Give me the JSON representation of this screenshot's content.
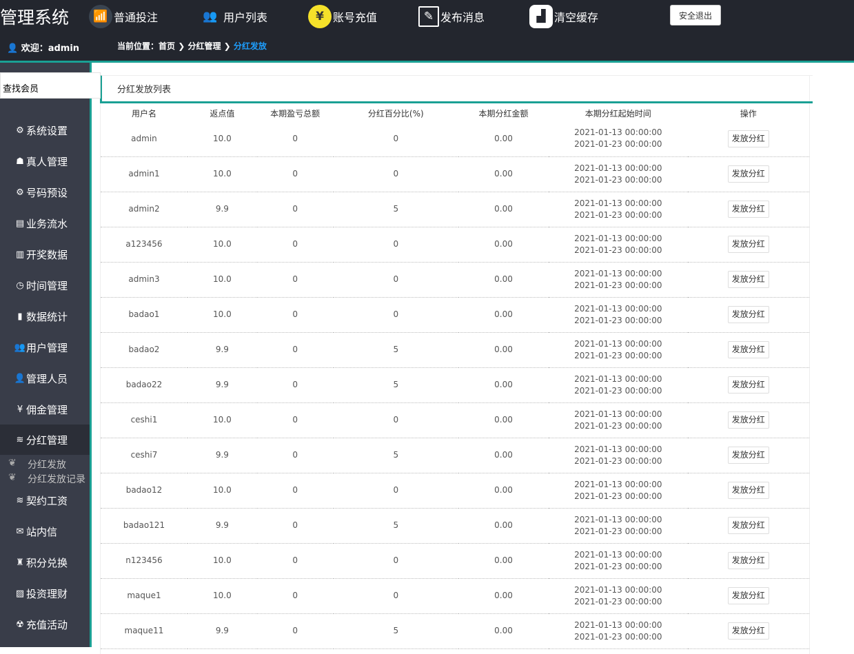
{
  "header": {
    "logo": "管理系统",
    "nav": [
      {
        "label": "普通投注",
        "icon": "chart-icon"
      },
      {
        "label": "用户列表",
        "icon": "users-icon"
      },
      {
        "label": "账号充值",
        "icon": "money-bag-icon"
      },
      {
        "label": "发布消息",
        "icon": "edit-icon"
      },
      {
        "label": "清空缓存",
        "icon": "broom-icon"
      }
    ],
    "logout": "安全退出",
    "welcome": "欢迎：admin",
    "breadcrumb": {
      "prefix": "当前位置：",
      "home": "首页",
      "parent": "分红管理",
      "current": "分红发放"
    }
  },
  "sidebar": {
    "search": "查找会员",
    "items": [
      {
        "label": "系统设置",
        "icon": "gear-icon"
      },
      {
        "label": "真人管理",
        "icon": "person-icon"
      },
      {
        "label": "号码预设",
        "icon": "settings-icon"
      },
      {
        "label": "业务流水",
        "icon": "ledger-icon"
      },
      {
        "label": "开奖数据",
        "icon": "bar-chart-icon"
      },
      {
        "label": "时间管理",
        "icon": "clock-icon"
      },
      {
        "label": "数据统计",
        "icon": "stats-icon"
      },
      {
        "label": "用户管理",
        "icon": "users-icon"
      },
      {
        "label": "管理人员",
        "icon": "user-icon"
      },
      {
        "label": "佣金管理",
        "icon": "yen-icon"
      },
      {
        "label": "分红管理",
        "icon": "database-icon"
      },
      {
        "label": "契约工资",
        "icon": "database-icon"
      },
      {
        "label": "站内信",
        "icon": "mail-icon"
      },
      {
        "label": "积分兑换",
        "icon": "bag-icon"
      },
      {
        "label": "投资理财",
        "icon": "chart-icon"
      },
      {
        "label": "充值活动",
        "icon": "gift-icon"
      }
    ],
    "sub": [
      "分红发放",
      "分红发放记录"
    ]
  },
  "panel": {
    "title": "分红发放列表",
    "columns": [
      "用户名",
      "返点值",
      "本期盈亏总额",
      "分红百分比(%)",
      "本期分红金额",
      "本期分红起始时间",
      "操作"
    ],
    "action": "发放分红",
    "rows": [
      [
        "admin",
        "10.0",
        "0",
        "0",
        "0.00",
        "2021-01-13 00:00:00",
        "2021-01-23 00:00:00"
      ],
      [
        "admin1",
        "10.0",
        "0",
        "0",
        "0.00",
        "2021-01-13 00:00:00",
        "2021-01-23 00:00:00"
      ],
      [
        "admin2",
        "9.9",
        "0",
        "5",
        "0.00",
        "2021-01-13 00:00:00",
        "2021-01-23 00:00:00"
      ],
      [
        "a123456",
        "10.0",
        "0",
        "0",
        "0.00",
        "2021-01-13 00:00:00",
        "2021-01-23 00:00:00"
      ],
      [
        "admin3",
        "10.0",
        "0",
        "0",
        "0.00",
        "2021-01-13 00:00:00",
        "2021-01-23 00:00:00"
      ],
      [
        "badao1",
        "10.0",
        "0",
        "0",
        "0.00",
        "2021-01-13 00:00:00",
        "2021-01-23 00:00:00"
      ],
      [
        "badao2",
        "9.9",
        "0",
        "5",
        "0.00",
        "2021-01-13 00:00:00",
        "2021-01-23 00:00:00"
      ],
      [
        "badao22",
        "9.9",
        "0",
        "5",
        "0.00",
        "2021-01-13 00:00:00",
        "2021-01-23 00:00:00"
      ],
      [
        "ceshi1",
        "10.0",
        "0",
        "0",
        "0.00",
        "2021-01-13 00:00:00",
        "2021-01-23 00:00:00"
      ],
      [
        "ceshi7",
        "9.9",
        "0",
        "5",
        "0.00",
        "2021-01-13 00:00:00",
        "2021-01-23 00:00:00"
      ],
      [
        "badao12",
        "10.0",
        "0",
        "0",
        "0.00",
        "2021-01-13 00:00:00",
        "2021-01-23 00:00:00"
      ],
      [
        "badao121",
        "9.9",
        "0",
        "5",
        "0.00",
        "2021-01-13 00:00:00",
        "2021-01-23 00:00:00"
      ],
      [
        "n123456",
        "10.0",
        "0",
        "0",
        "0.00",
        "2021-01-13 00:00:00",
        "2021-01-23 00:00:00"
      ],
      [
        "maque1",
        "10.0",
        "0",
        "0",
        "0.00",
        "2021-01-13 00:00:00",
        "2021-01-23 00:00:00"
      ],
      [
        "maque11",
        "9.9",
        "0",
        "5",
        "0.00",
        "2021-01-13 00:00:00",
        "2021-01-23 00:00:00"
      ]
    ]
  },
  "colors": {
    "accent": "#1aa094",
    "topbar": "#23262e",
    "sidebar": "#393d49",
    "breadcrumb_current": "#1e9fff"
  }
}
